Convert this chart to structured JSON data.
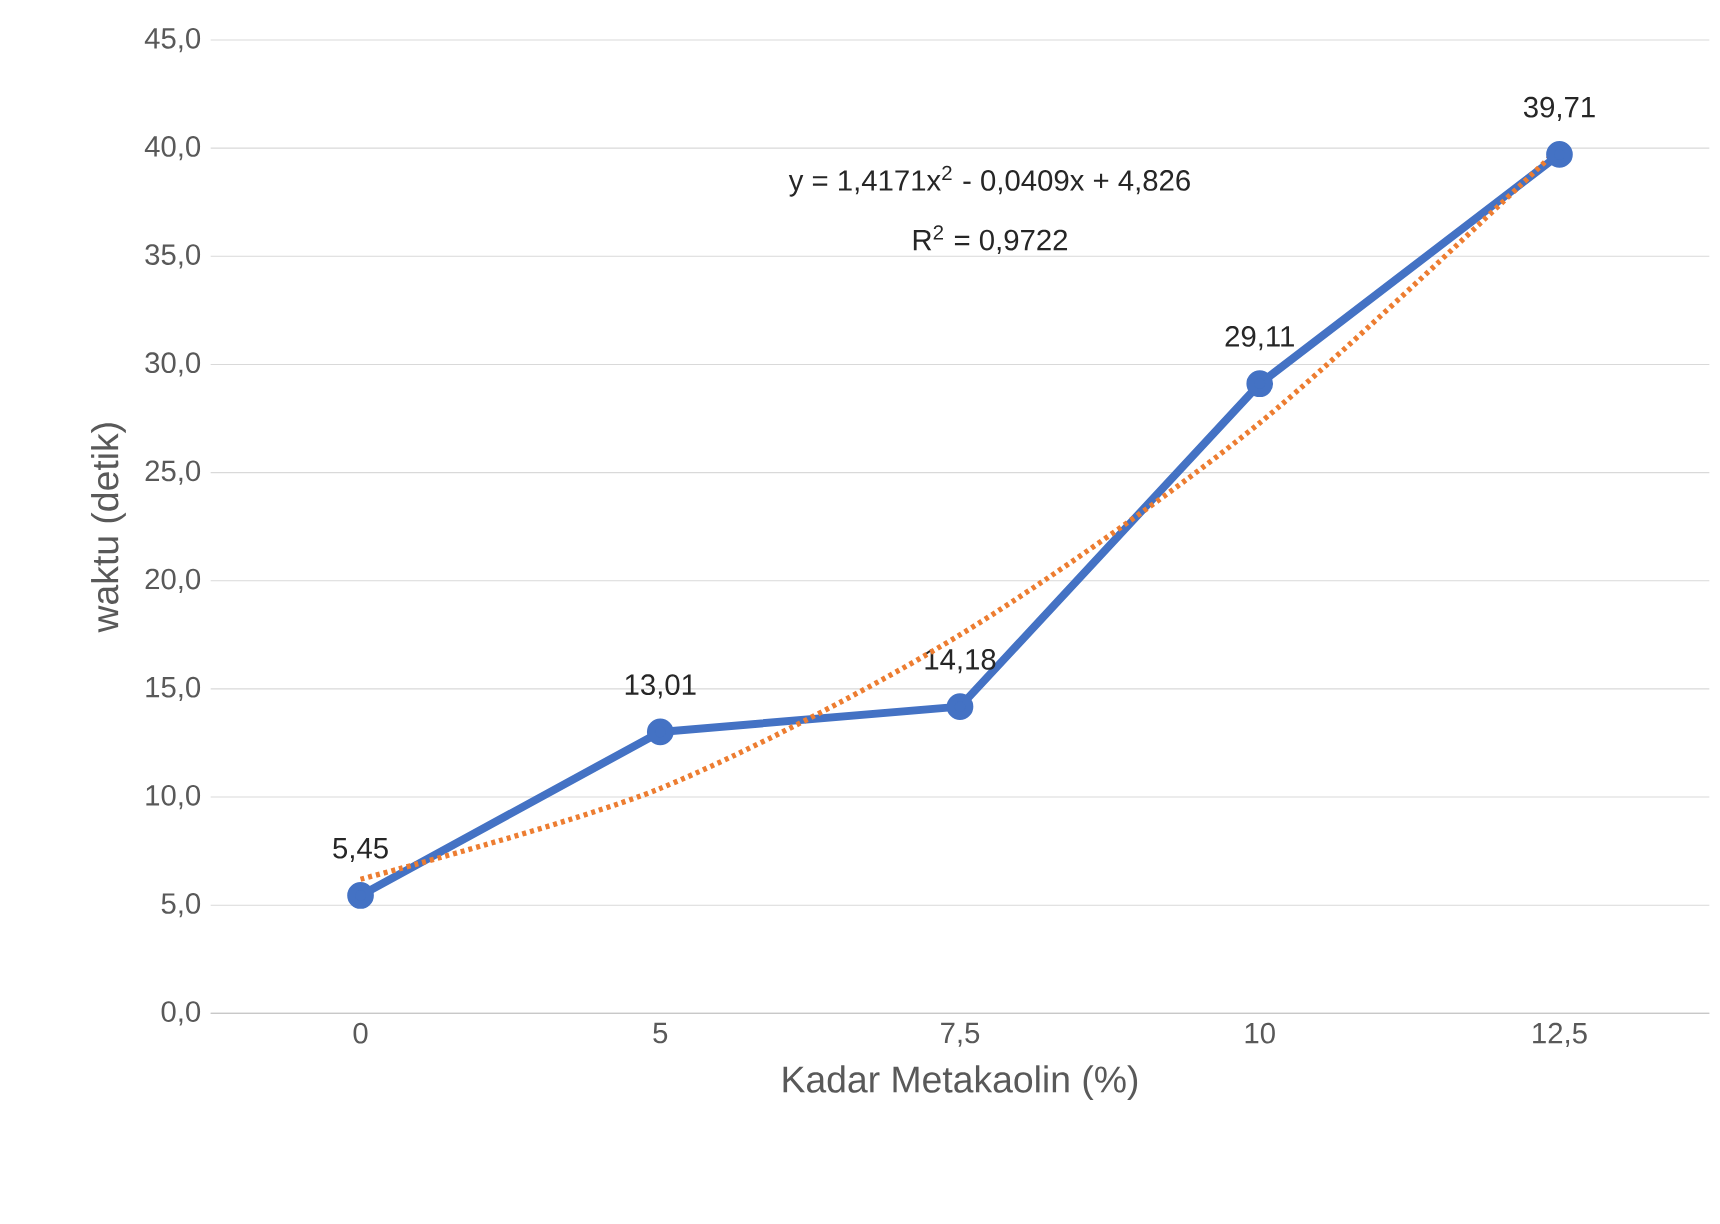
{
  "chart_data": {
    "type": "line",
    "xlabel": "Kadar Metakaolin (%)",
    "ylabel": "waktu (detik)",
    "categories": [
      "0",
      "5",
      "7,5",
      "10",
      "12,5"
    ],
    "series": [
      {
        "color": "#4472c4",
        "values": [
          5.45,
          13.01,
          14.18,
          29.11,
          39.71
        ],
        "value_labels": [
          "5,45",
          "13,01",
          "14,18",
          "29,11",
          "39,71"
        ],
        "marker": "circle",
        "line_style": "solid"
      },
      {
        "color": "#ed7d31",
        "values": [
          6.2,
          10.4,
          17.5,
          27.3,
          40.0
        ],
        "marker": "none",
        "line_style": "dotted"
      }
    ],
    "ylim": [
      0,
      45
    ],
    "yticks": [
      {
        "value": 0,
        "label": "0,0"
      },
      {
        "value": 5,
        "label": "5,0"
      },
      {
        "value": 10,
        "label": "10,0"
      },
      {
        "value": 15,
        "label": "15,0"
      },
      {
        "value": 20,
        "label": "20,0"
      },
      {
        "value": 25,
        "label": "25,0"
      },
      {
        "value": 30,
        "label": "30,0"
      },
      {
        "value": 35,
        "label": "35,0"
      },
      {
        "value": 40,
        "label": "40,0"
      },
      {
        "value": 45,
        "label": "45,0"
      }
    ],
    "grid": "y",
    "legend": false,
    "annotations": [
      "y = 1,4171x$^{2}$ - 0,0409x + 4,826",
      "R$^{2}$ = 0,9722"
    ]
  }
}
